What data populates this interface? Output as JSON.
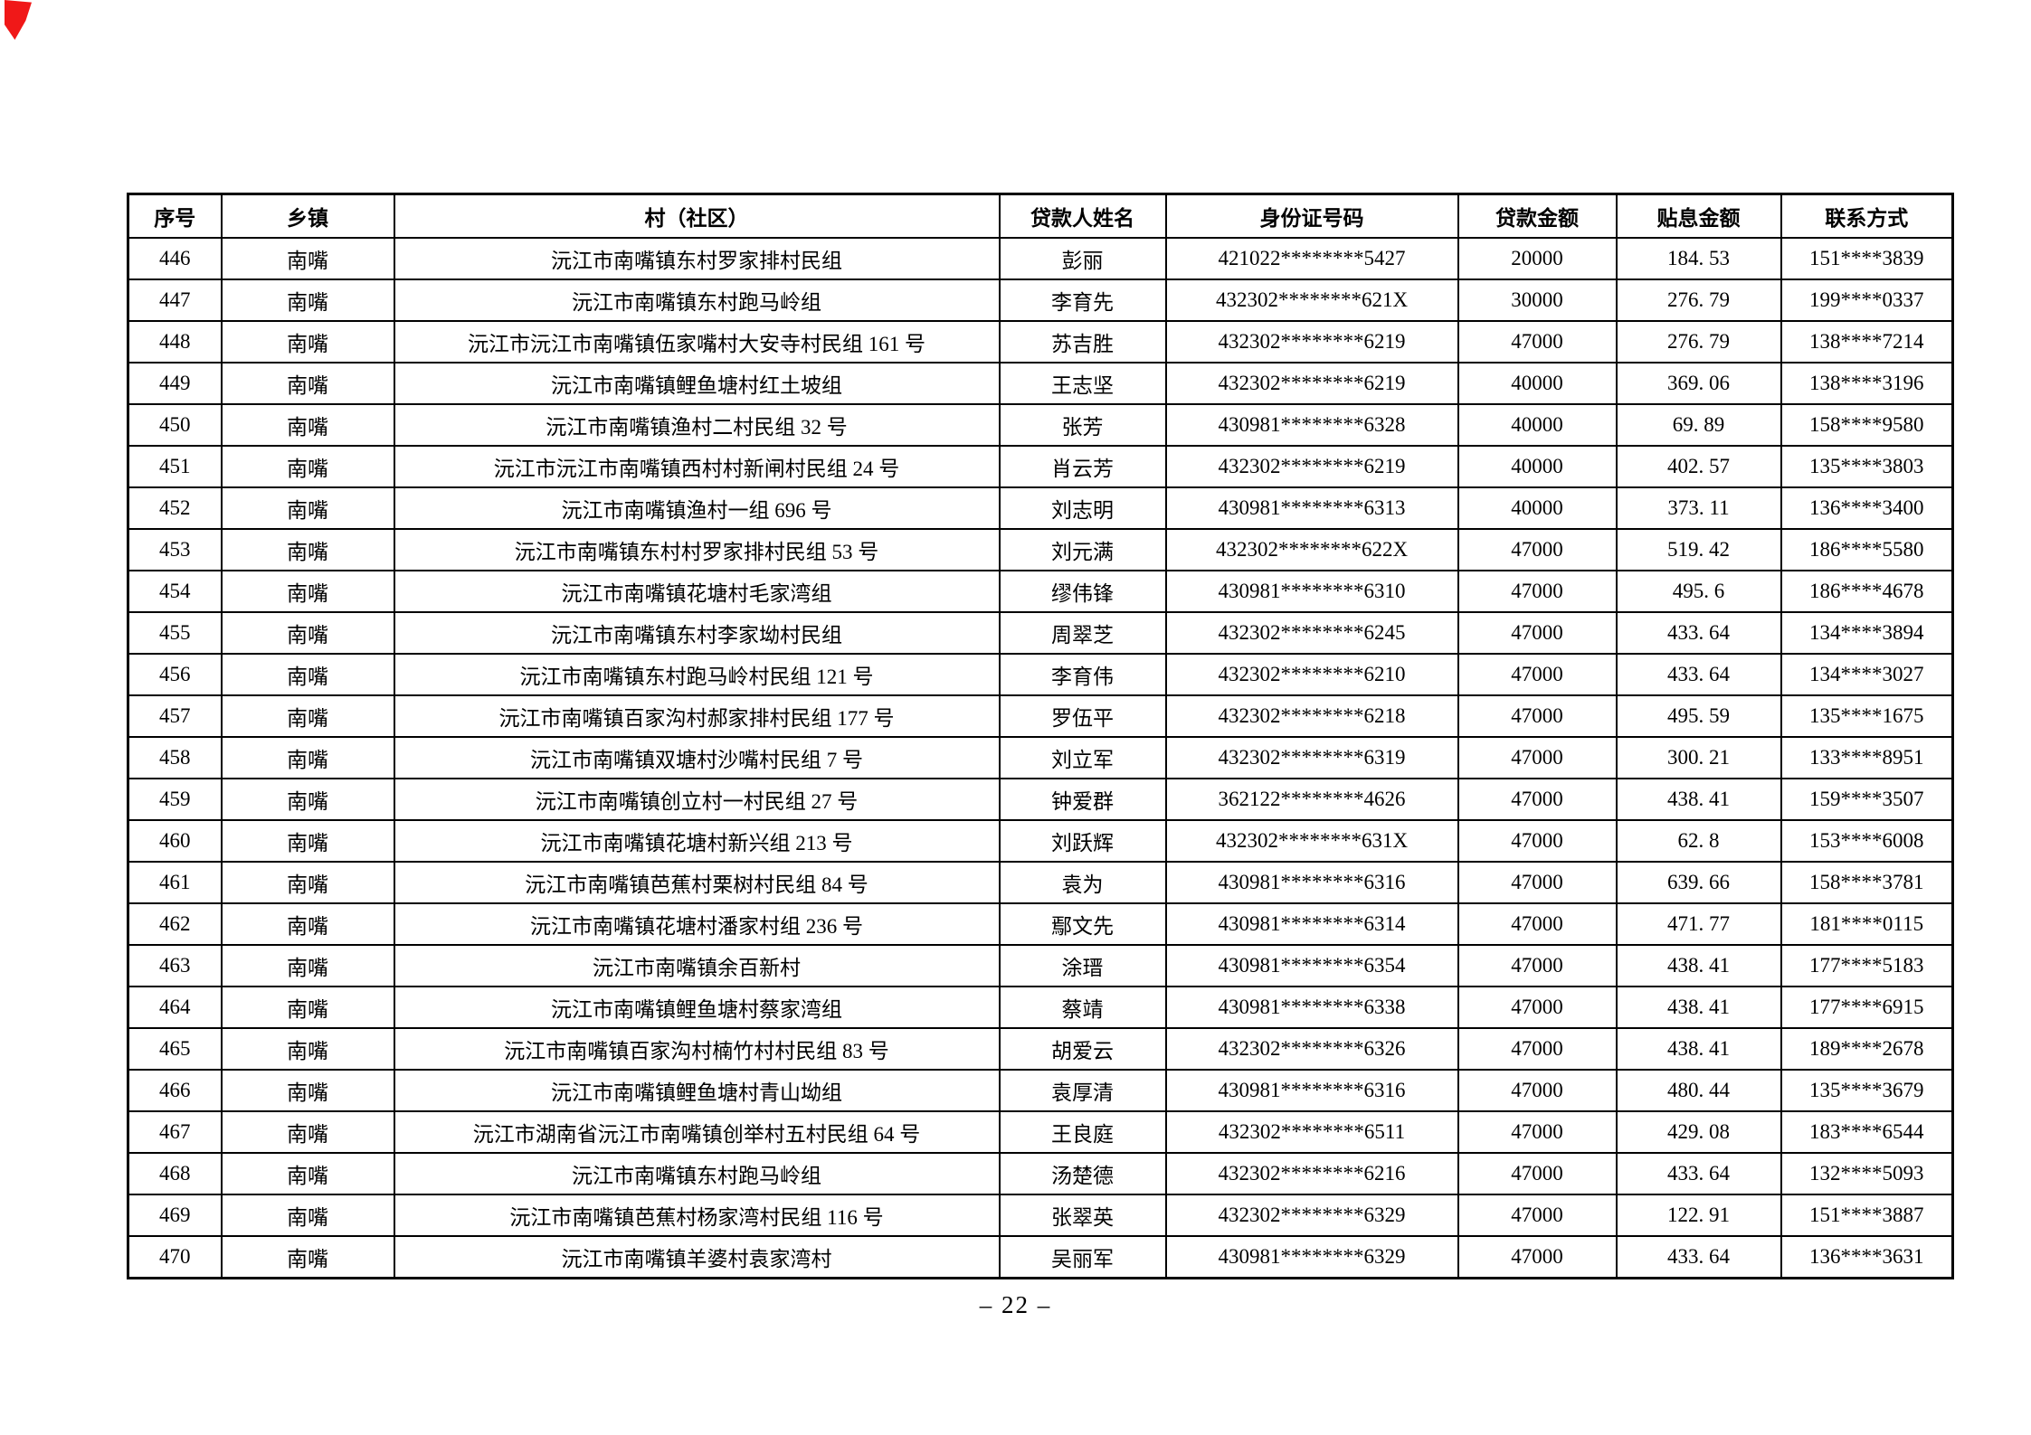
{
  "page": {
    "footer_page_number": "– 22 –"
  },
  "table": {
    "columns": [
      {
        "key": "index",
        "label": "序号"
      },
      {
        "key": "town",
        "label": "乡镇"
      },
      {
        "key": "village",
        "label": "村（社区）"
      },
      {
        "key": "name",
        "label": "贷款人姓名"
      },
      {
        "key": "id",
        "label": "身份证号码"
      },
      {
        "key": "loan",
        "label": "贷款金额"
      },
      {
        "key": "subsidy",
        "label": "贴息金额"
      },
      {
        "key": "contact",
        "label": "联系方式"
      }
    ],
    "rows": [
      {
        "index": "446",
        "town": "南嘴",
        "village": "沅江市南嘴镇东村罗家排村民组",
        "name": "彭丽",
        "id": "421022********5427",
        "loan": "20000",
        "subsidy": "184. 53",
        "contact": "151****3839"
      },
      {
        "index": "447",
        "town": "南嘴",
        "village": "沅江市南嘴镇东村跑马岭组",
        "name": "李育先",
        "id": "432302********621X",
        "loan": "30000",
        "subsidy": "276. 79",
        "contact": "199****0337"
      },
      {
        "index": "448",
        "town": "南嘴",
        "village": "沅江市沅江市南嘴镇伍家嘴村大安寺村民组 161 号",
        "name": "苏吉胜",
        "id": "432302********6219",
        "loan": "47000",
        "subsidy": "276. 79",
        "contact": "138****7214"
      },
      {
        "index": "449",
        "town": "南嘴",
        "village": "沅江市南嘴镇鲤鱼塘村红土坡组",
        "name": "王志坚",
        "id": "432302********6219",
        "loan": "40000",
        "subsidy": "369. 06",
        "contact": "138****3196"
      },
      {
        "index": "450",
        "town": "南嘴",
        "village": "沅江市南嘴镇渔村二村民组 32 号",
        "name": "张芳",
        "id": "430981********6328",
        "loan": "40000",
        "subsidy": "69. 89",
        "contact": "158****9580"
      },
      {
        "index": "451",
        "town": "南嘴",
        "village": "沅江市沅江市南嘴镇西村村新闸村民组 24 号",
        "name": "肖云芳",
        "id": "432302********6219",
        "loan": "40000",
        "subsidy": "402. 57",
        "contact": "135****3803"
      },
      {
        "index": "452",
        "town": "南嘴",
        "village": "沅江市南嘴镇渔村一组 696 号",
        "name": "刘志明",
        "id": "430981********6313",
        "loan": "40000",
        "subsidy": "373. 11",
        "contact": "136****3400"
      },
      {
        "index": "453",
        "town": "南嘴",
        "village": "沅江市南嘴镇东村村罗家排村民组 53 号",
        "name": "刘元满",
        "id": "432302********622X",
        "loan": "47000",
        "subsidy": "519. 42",
        "contact": "186****5580"
      },
      {
        "index": "454",
        "town": "南嘴",
        "village": "沅江市南嘴镇花塘村毛家湾组",
        "name": "缪伟锋",
        "id": "430981********6310",
        "loan": "47000",
        "subsidy": "495. 6",
        "contact": "186****4678"
      },
      {
        "index": "455",
        "town": "南嘴",
        "village": "沅江市南嘴镇东村李家坳村民组",
        "name": "周翠芝",
        "id": "432302********6245",
        "loan": "47000",
        "subsidy": "433. 64",
        "contact": "134****3894"
      },
      {
        "index": "456",
        "town": "南嘴",
        "village": "沅江市南嘴镇东村跑马岭村民组 121 号",
        "name": "李育伟",
        "id": "432302********6210",
        "loan": "47000",
        "subsidy": "433. 64",
        "contact": "134****3027"
      },
      {
        "index": "457",
        "town": "南嘴",
        "village": "沅江市南嘴镇百家沟村郝家排村民组 177 号",
        "name": "罗伍平",
        "id": "432302********6218",
        "loan": "47000",
        "subsidy": "495. 59",
        "contact": "135****1675"
      },
      {
        "index": "458",
        "town": "南嘴",
        "village": "沅江市南嘴镇双塘村沙嘴村民组 7 号",
        "name": "刘立军",
        "id": "432302********6319",
        "loan": "47000",
        "subsidy": "300. 21",
        "contact": "133****8951"
      },
      {
        "index": "459",
        "town": "南嘴",
        "village": "沅江市南嘴镇创立村一村民组 27 号",
        "name": "钟爱群",
        "id": "362122********4626",
        "loan": "47000",
        "subsidy": "438. 41",
        "contact": "159****3507"
      },
      {
        "index": "460",
        "town": "南嘴",
        "village": "沅江市南嘴镇花塘村新兴组 213 号",
        "name": "刘跃辉",
        "id": "432302********631X",
        "loan": "47000",
        "subsidy": "62. 8",
        "contact": "153****6008"
      },
      {
        "index": "461",
        "town": "南嘴",
        "village": "沅江市南嘴镇芭蕉村栗树村民组 84 号",
        "name": "袁为",
        "id": "430981********6316",
        "loan": "47000",
        "subsidy": "639. 66",
        "contact": "158****3781"
      },
      {
        "index": "462",
        "town": "南嘴",
        "village": "沅江市南嘴镇花塘村潘家村组 236 号",
        "name": "鄢文先",
        "id": "430981********6314",
        "loan": "47000",
        "subsidy": "471. 77",
        "contact": "181****0115"
      },
      {
        "index": "463",
        "town": "南嘴",
        "village": "沅江市南嘴镇余百新村",
        "name": "涂瑨",
        "id": "430981********6354",
        "loan": "47000",
        "subsidy": "438. 41",
        "contact": "177****5183"
      },
      {
        "index": "464",
        "town": "南嘴",
        "village": "沅江市南嘴镇鲤鱼塘村蔡家湾组",
        "name": "蔡靖",
        "id": "430981********6338",
        "loan": "47000",
        "subsidy": "438. 41",
        "contact": "177****6915"
      },
      {
        "index": "465",
        "town": "南嘴",
        "village": "沅江市南嘴镇百家沟村楠竹村村民组 83 号",
        "name": "胡爱云",
        "id": "432302********6326",
        "loan": "47000",
        "subsidy": "438. 41",
        "contact": "189****2678"
      },
      {
        "index": "466",
        "town": "南嘴",
        "village": "沅江市南嘴镇鲤鱼塘村青山坳组",
        "name": "袁厚清",
        "id": "430981********6316",
        "loan": "47000",
        "subsidy": "480. 44",
        "contact": "135****3679"
      },
      {
        "index": "467",
        "town": "南嘴",
        "village": "沅江市湖南省沅江市南嘴镇创举村五村民组 64 号",
        "name": "王良庭",
        "id": "432302********6511",
        "loan": "47000",
        "subsidy": "429. 08",
        "contact": "183****6544"
      },
      {
        "index": "468",
        "town": "南嘴",
        "village": "沅江市南嘴镇东村跑马岭组",
        "name": "汤楚德",
        "id": "432302********6216",
        "loan": "47000",
        "subsidy": "433. 64",
        "contact": "132****5093"
      },
      {
        "index": "469",
        "town": "南嘴",
        "village": "沅江市南嘴镇芭蕉村杨家湾村民组 116 号",
        "name": "张翠英",
        "id": "432302********6329",
        "loan": "47000",
        "subsidy": "122. 91",
        "contact": "151****3887"
      },
      {
        "index": "470",
        "town": "南嘴",
        "village": "沅江市南嘴镇羊婆村袁家湾村",
        "name": "吴丽军",
        "id": "430981********6329",
        "loan": "47000",
        "subsidy": "433. 64",
        "contact": "136****3631"
      }
    ]
  }
}
